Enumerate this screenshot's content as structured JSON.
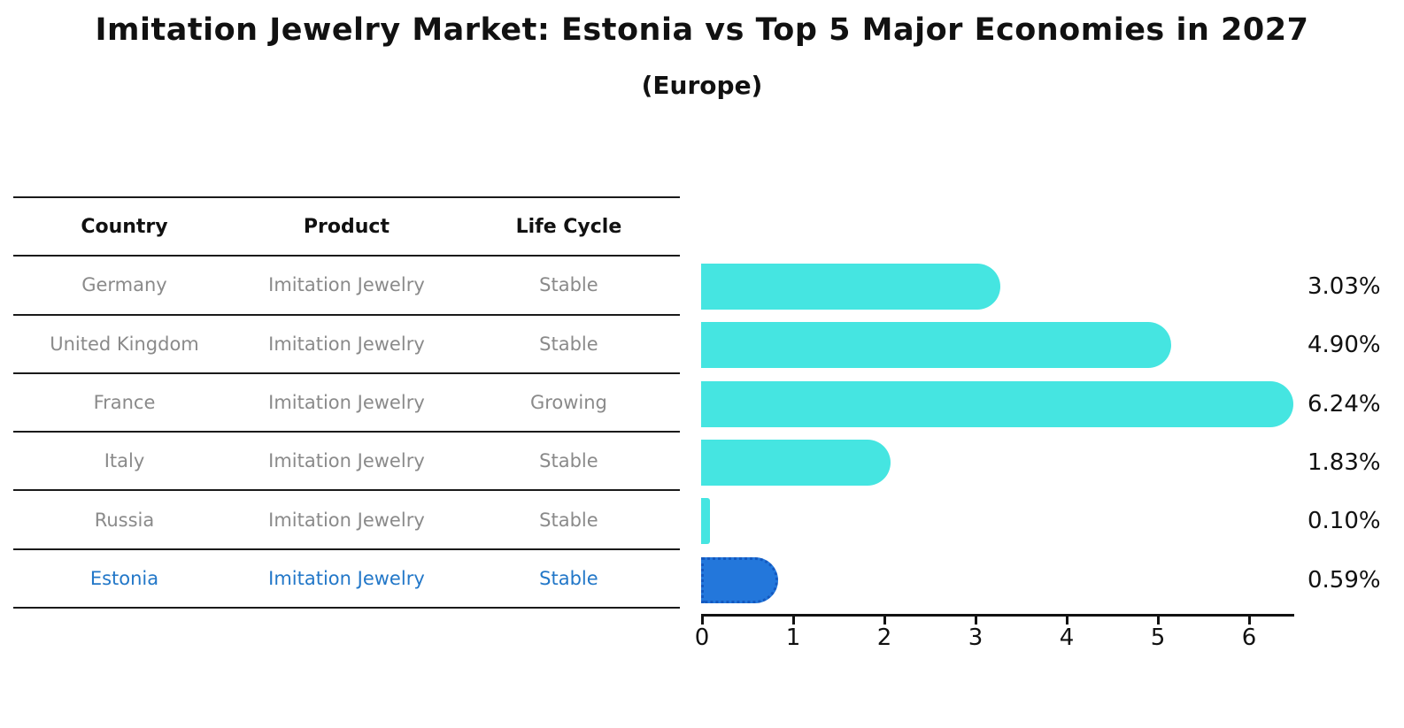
{
  "header": {
    "title": "Imitation Jewelry Market: Estonia vs Top 5 Major Economies in 2027",
    "subtitle": "(Europe)"
  },
  "table": {
    "columns": [
      "Country",
      "Product",
      "Life Cycle"
    ],
    "rows": [
      {
        "country": "Germany",
        "product": "Imitation Jewelry",
        "life_cycle": "Stable",
        "highlighted": false
      },
      {
        "country": "United Kingdom",
        "product": "Imitation Jewelry",
        "life_cycle": "Stable",
        "highlighted": false
      },
      {
        "country": "France",
        "product": "Imitation Jewelry",
        "life_cycle": "Growing",
        "highlighted": false
      },
      {
        "country": "Italy",
        "product": "Imitation Jewelry",
        "life_cycle": "Stable",
        "highlighted": false
      },
      {
        "country": "Russia",
        "product": "Imitation Jewelry",
        "life_cycle": "Stable",
        "highlighted": false
      },
      {
        "country": "Estonia",
        "product": "Imitation Jewelry",
        "life_cycle": "Stable",
        "highlighted": true
      }
    ]
  },
  "chart_data": {
    "type": "bar",
    "orientation": "horizontal",
    "title": "Imitation Jewelry Market: Estonia vs Top 5 Major Economies in 2027",
    "subtitle": "(Europe)",
    "categories": [
      "Germany",
      "United Kingdom",
      "France",
      "Italy",
      "Russia",
      "Estonia"
    ],
    "values": [
      3.03,
      4.9,
      6.24,
      1.83,
      0.1,
      0.59
    ],
    "value_labels": [
      "3.03%",
      "4.90%",
      "6.24%",
      "1.83%",
      "0.10%",
      "0.59%"
    ],
    "x_ticks": [
      "0",
      "1",
      "2",
      "3",
      "4",
      "5",
      "6"
    ],
    "xlim": [
      0,
      6.5
    ],
    "grid": false,
    "legend": false,
    "highlight_index": 5
  },
  "colors": {
    "bar": "#45E5E1",
    "highlight_bar": "#2377DB",
    "highlight_border": "#1459C0",
    "table_text": "#8a8a8a",
    "highlight_text": "#2277C8",
    "heading_text": "#111111",
    "line": "#1a1a1a"
  }
}
